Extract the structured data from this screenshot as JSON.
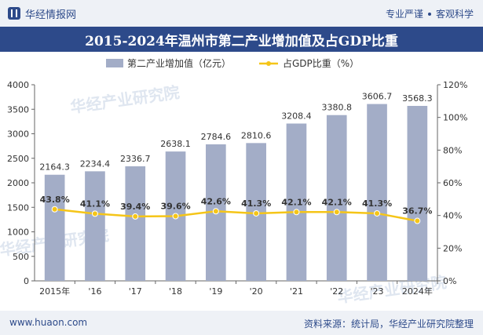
{
  "header": {
    "brand": "华经情报网",
    "slogan_left": "专业严谨",
    "slogan_right": "客观科学"
  },
  "title": "2015-2024年温州市第二产业增加值及占GDP比重",
  "watermark": "华经产业研究院",
  "footer": {
    "url": "www.huaon.com",
    "source": "资料来源：统计局，华经产业研究院整理"
  },
  "colors": {
    "bar": "#a3adc7",
    "line": "#f5c518",
    "brand": "#2d4a8a"
  },
  "chart_data": {
    "type": "bar",
    "categories": [
      "2015年",
      "'16",
      "'17",
      "'18",
      "'19",
      "'20",
      "'21",
      "'22",
      "'23",
      "2024年"
    ],
    "series": [
      {
        "name": "第二产业增加值（亿元）",
        "type": "bar",
        "axis": "left",
        "values": [
          2164.3,
          2234.4,
          2336.7,
          2638.1,
          2784.6,
          2810.6,
          3208.4,
          3380.8,
          3606.7,
          3568.3
        ],
        "labels": [
          "2164.3",
          "2234.4",
          "2336.7",
          "2638.1",
          "2784.6",
          "2810.6",
          "3208.4",
          "3380.8",
          "3606.7",
          "3568.3"
        ]
      },
      {
        "name": "占GDP比重（%）",
        "type": "line",
        "axis": "right",
        "values": [
          43.8,
          41.1,
          39.4,
          39.6,
          42.6,
          41.3,
          42.1,
          42.1,
          41.3,
          36.7
        ],
        "labels": [
          "43.8%",
          "41.1%",
          "39.4%",
          "39.6%",
          "42.6%",
          "41.3%",
          "42.1%",
          "42.1%",
          "41.3%",
          "36.7%"
        ]
      }
    ],
    "yleft": {
      "range": [
        0,
        4000
      ],
      "ticks": [
        "0",
        "500",
        "1000",
        "1500",
        "2000",
        "2500",
        "3000",
        "3500",
        "4000"
      ]
    },
    "yright": {
      "range": [
        0,
        120
      ],
      "ticks": [
        "0%",
        "20%",
        "40%",
        "60%",
        "80%",
        "100%",
        "120%"
      ]
    },
    "grid": false,
    "legend": "top-center"
  }
}
